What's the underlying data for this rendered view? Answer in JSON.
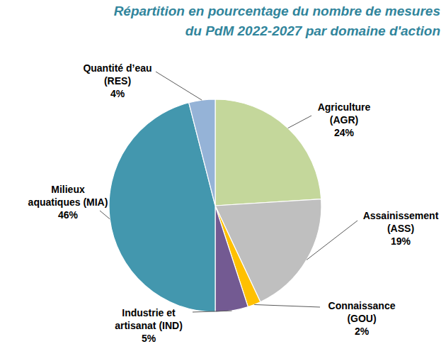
{
  "chart_data": {
    "type": "pie",
    "title": [
      "Répartition en pourcentage du nombre de mesures",
      "du PdM 2022-2027  par domaine d'action"
    ],
    "categories": [
      "Agriculture\n(AGR)",
      "Assainissement\n(ASS)",
      "Connaissance\n(GOU)",
      "Industrie et\nartisanat (IND)",
      "Milieux\naquatiques (MIA)",
      "Quantité d’eau\n(RES)"
    ],
    "values": [
      24,
      19,
      2,
      5,
      46,
      4
    ],
    "value_labels": [
      "24%",
      "19%",
      "2%",
      "5%",
      "46%",
      "4%"
    ],
    "colors": [
      "#c4d79b",
      "#bfbfbf",
      "#ffc000",
      "#735a92",
      "#4397ae",
      "#95b3d7"
    ],
    "data_labels": true
  }
}
